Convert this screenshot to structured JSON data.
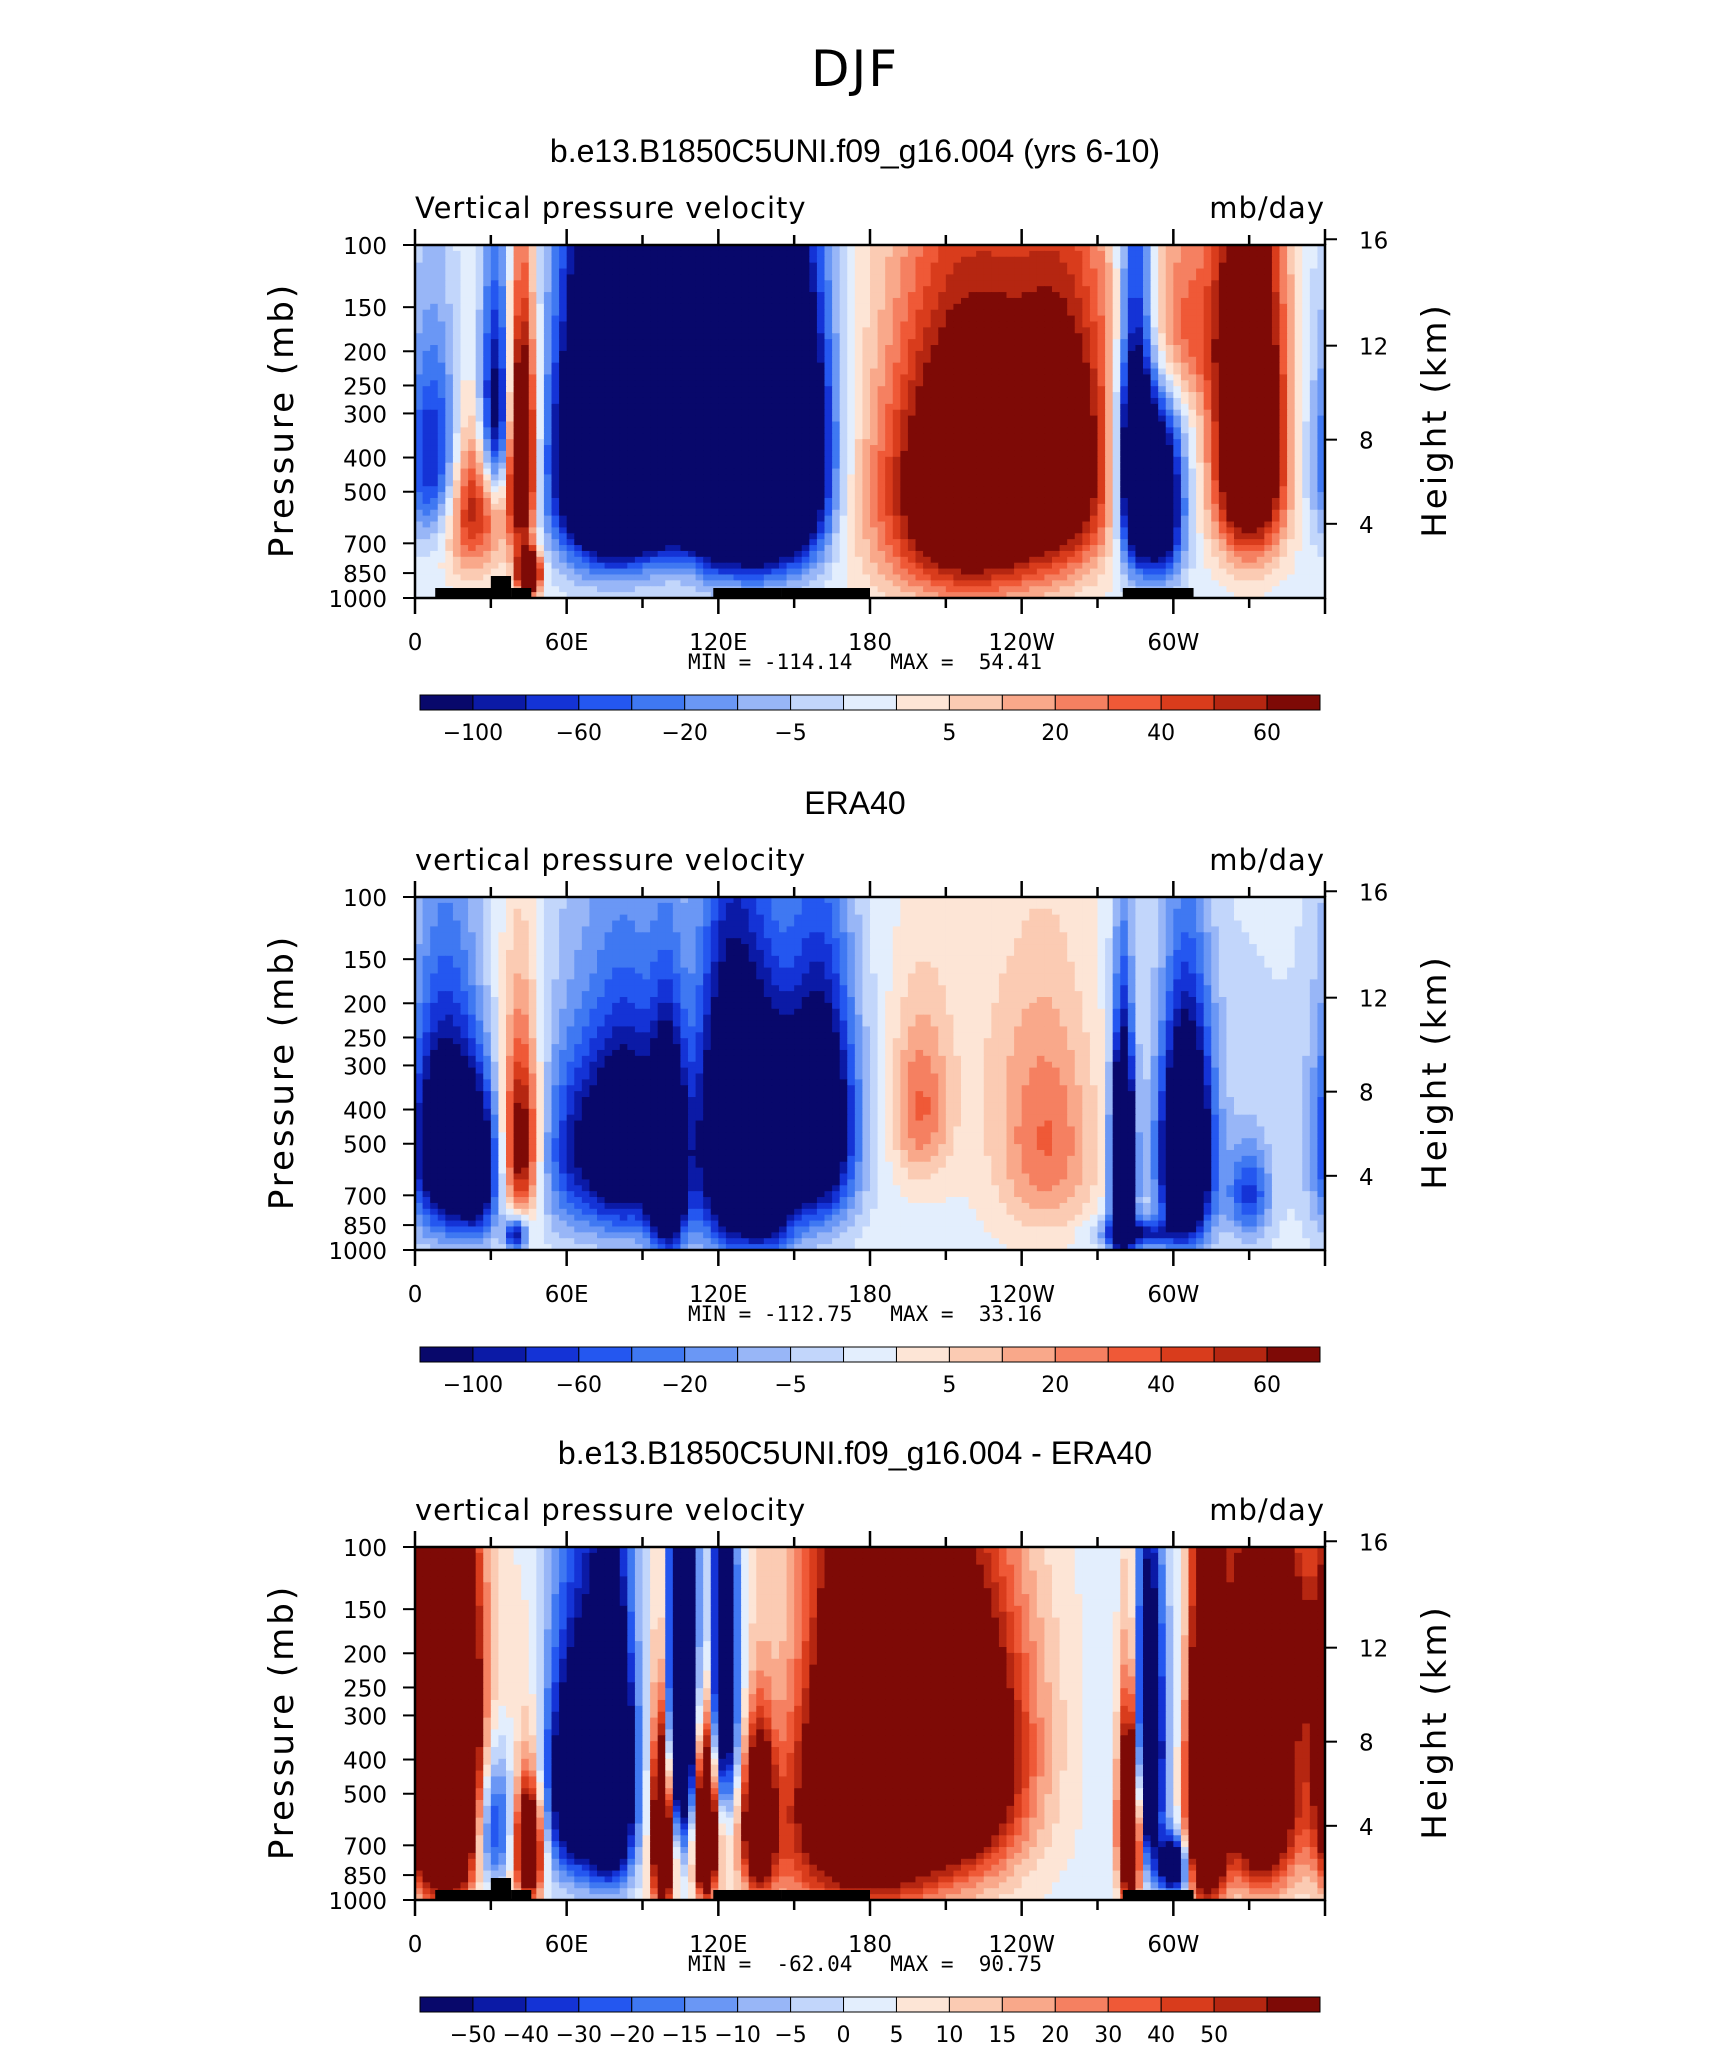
{
  "figure": {
    "title": "DJF"
  },
  "colors": {
    "scale": [
      "#08086b",
      "#0b1aa6",
      "#1433d6",
      "#2457f0",
      "#3f78f2",
      "#6a97f5",
      "#98b6f7",
      "#c2d6fb",
      "#e3eefd",
      "#fde5d6",
      "#fbcbb3",
      "#f9a88a",
      "#f58061",
      "#ef5937",
      "#d93c1c",
      "#b52611",
      "#7e0a06"
    ]
  },
  "chart_data": [
    {
      "type": "heatmap",
      "title": "b.e13.B1850C5UNI.f09_g16.004 (yrs 6-10)",
      "left_title": "Vertical pressure velocity",
      "right_title": "mb/day",
      "ylabel": "Pressure (mb)",
      "y2label": "Height (km)",
      "yticks": [
        "100",
        "150",
        "200",
        "250",
        "300",
        "400",
        "500",
        "700",
        "850",
        "1000"
      ],
      "y2ticks": [
        "16",
        "12",
        "8",
        "4"
      ],
      "xticks": [
        "0",
        "60E",
        "120E",
        "180",
        "120W",
        "60W"
      ],
      "min_max": "MIN = -114.14   MAX =  54.41",
      "colorbar_labels": [
        "-100",
        "-60",
        "-20",
        "-5",
        "5",
        "20",
        "40",
        "60"
      ],
      "field_scale": 60,
      "blobs": [
        [
          10,
          400,
          -60,
          10,
          180,
          1
        ],
        [
          22,
          500,
          70,
          8,
          200,
          1
        ],
        [
          32,
          300,
          -80,
          5,
          150,
          1
        ],
        [
          42,
          400,
          110,
          4,
          200,
          1
        ],
        [
          45,
          850,
          130,
          3,
          80,
          1
        ],
        [
          75,
          400,
          -135,
          14,
          300,
          0.8
        ],
        [
          90,
          300,
          -135,
          14,
          300,
          0.8
        ],
        [
          105,
          300,
          -150,
          8,
          260,
          0.8
        ],
        [
          120,
          400,
          -160,
          8,
          300,
          0.8
        ],
        [
          135,
          400,
          -160,
          8,
          300,
          0.8
        ],
        [
          150,
          400,
          -120,
          10,
          300,
          0.8
        ],
        [
          220,
          500,
          100,
          24,
          300,
          1
        ],
        [
          258,
          400,
          60,
          14,
          250,
          1
        ],
        [
          285,
          400,
          -110,
          5,
          250,
          1
        ],
        [
          295,
          550,
          -90,
          6,
          200,
          1
        ],
        [
          330,
          350,
          120,
          10,
          250,
          1
        ],
        [
          300,
          170,
          40,
          14,
          80,
          1
        ]
      ]
    },
    {
      "type": "heatmap",
      "title": "ERA40",
      "left_title": "vertical pressure velocity",
      "right_title": "mb/day",
      "ylabel": "Pressure (mb)",
      "y2label": "Height (km)",
      "yticks": [
        "100",
        "150",
        "200",
        "250",
        "300",
        "400",
        "500",
        "700",
        "850",
        "1000"
      ],
      "y2ticks": [
        "16",
        "12",
        "8",
        "4"
      ],
      "xticks": [
        "0",
        "60E",
        "120E",
        "180",
        "120W",
        "60W"
      ],
      "min_max": "MIN = -112.75   MAX =  33.16",
      "colorbar_labels": [
        "-100",
        "-60",
        "-20",
        "-5",
        "5",
        "20",
        "40",
        "60"
      ],
      "field_scale": 60,
      "blobs": [
        [
          12,
          500,
          -90,
          10,
          250,
          1
        ],
        [
          25,
          600,
          -60,
          6,
          200,
          1
        ],
        [
          42,
          500,
          70,
          5,
          200,
          1
        ],
        [
          40,
          900,
          -60,
          3,
          70,
          1
        ],
        [
          65,
          500,
          -50,
          12,
          250,
          1
        ],
        [
          85,
          500,
          -70,
          10,
          250,
          1
        ],
        [
          100,
          600,
          -110,
          5,
          250,
          1
        ],
        [
          125,
          500,
          -100,
          10,
          300,
          1
        ],
        [
          140,
          600,
          -80,
          8,
          250,
          1
        ],
        [
          160,
          450,
          -90,
          10,
          300,
          0.8
        ],
        [
          200,
          400,
          30,
          8,
          150,
          1
        ],
        [
          250,
          500,
          30,
          14,
          250,
          1
        ],
        [
          280,
          600,
          -160,
          3,
          250,
          1
        ],
        [
          305,
          550,
          -120,
          7,
          250,
          1
        ],
        [
          285,
          900,
          -50,
          10,
          60,
          1
        ],
        [
          330,
          700,
          -40,
          6,
          150,
          1
        ]
      ]
    },
    {
      "type": "heatmap",
      "title": "b.e13.B1850C5UNI.f09_g16.004 - ERA40",
      "left_title": "vertical pressure velocity",
      "right_title": "mb/day",
      "ylabel": "Pressure (mb)",
      "y2label": "Height (km)",
      "yticks": [
        "100",
        "150",
        "200",
        "250",
        "300",
        "400",
        "500",
        "700",
        "850",
        "1000"
      ],
      "y2ticks": [
        "16",
        "12",
        "8",
        "4"
      ],
      "xticks": [
        "0",
        "60E",
        "120E",
        "180",
        "120W",
        "60W"
      ],
      "min_max": "MIN =  -62.04   MAX =  90.75",
      "colorbar_labels": [
        "-50",
        "-40",
        "-30",
        "-20",
        "-15",
        "-10",
        "-5",
        "0",
        "5",
        "10",
        "15",
        "20",
        "30",
        "40",
        "50"
      ],
      "field_scale": 40,
      "blobs": [
        [
          12,
          450,
          150,
          9,
          300,
          1
        ],
        [
          30,
          600,
          -40,
          6,
          200,
          1
        ],
        [
          45,
          700,
          70,
          4,
          200,
          1
        ],
        [
          65,
          450,
          -70,
          10,
          250,
          1
        ],
        [
          78,
          450,
          -80,
          6,
          250,
          1
        ],
        [
          98,
          600,
          90,
          3,
          300,
          1
        ],
        [
          105,
          300,
          -80,
          5,
          250,
          1
        ],
        [
          115,
          600,
          90,
          3,
          250,
          1
        ],
        [
          122,
          250,
          -60,
          4,
          200,
          1
        ],
        [
          136,
          600,
          70,
          4,
          200,
          1
        ],
        [
          180,
          350,
          70,
          15,
          300,
          1
        ],
        [
          215,
          400,
          60,
          18,
          250,
          1
        ],
        [
          283,
          600,
          100,
          3,
          250,
          1
        ],
        [
          290,
          400,
          -70,
          4,
          250,
          1
        ],
        [
          300,
          800,
          -60,
          4,
          100,
          1
        ],
        [
          313,
          500,
          120,
          5,
          300,
          1
        ],
        [
          335,
          450,
          80,
          10,
          300,
          1
        ],
        [
          175,
          600,
          40,
          30,
          350,
          1
        ],
        [
          340,
          200,
          40,
          12,
          80,
          1
        ]
      ]
    }
  ]
}
